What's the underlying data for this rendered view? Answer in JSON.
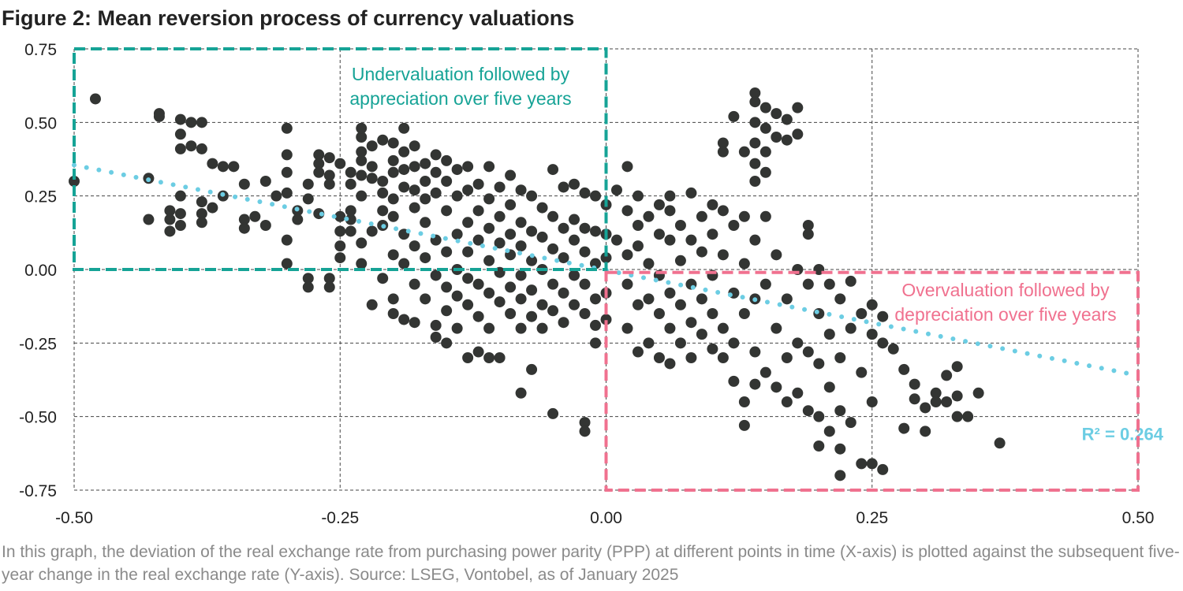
{
  "title": "Figure 2: Mean reversion process of currency valuations",
  "caption": "In this graph, the deviation of the real exchange rate from purchasing power parity (PPP) at different points in time (X-axis) is plotted against the subsequent five-year change in the real exchange rate (Y-axis). Source: LSEG, Vontobel, as of January 2025",
  "chart_data": {
    "type": "scatter",
    "title": "Figure 2: Mean reversion process of currency valuations",
    "xlabel": "",
    "ylabel": "",
    "xlim": [
      -0.5,
      0.5
    ],
    "ylim": [
      -0.75,
      0.75
    ],
    "xticks": [
      "-0.50",
      "-0.25",
      "0.00",
      "0.25",
      "0.50"
    ],
    "yticks": [
      "0.75",
      "0.50",
      "0.25",
      "0.00",
      "-0.25",
      "-0.50",
      "-0.75"
    ],
    "xtick_values": [
      -0.5,
      -0.25,
      0,
      0.25,
      0.5
    ],
    "ytick_values": [
      0.75,
      0.5,
      0.25,
      0,
      -0.25,
      -0.5,
      -0.75
    ],
    "grid": true,
    "point_color": "#333533",
    "trendline": {
      "type": "linear",
      "start": [
        -0.5,
        0.355
      ],
      "end": [
        0.5,
        -0.36
      ],
      "color": "#6ccde3",
      "label": "R² = 0.264"
    },
    "annotations": [
      {
        "text": [
          "Undervaluation followed by",
          "appreciation over five years"
        ],
        "color": "#16a396",
        "box": {
          "x": [
            -0.5,
            0
          ],
          "y": [
            0,
            0.75
          ]
        }
      },
      {
        "text": [
          "Overvaluation followed by",
          "depreciation over five years"
        ],
        "color": "#f0718f",
        "box": {
          "x": [
            0,
            0.5
          ],
          "y": [
            -0.75,
            -0.01
          ]
        }
      }
    ],
    "points": [
      [
        -0.5,
        0.3
      ],
      [
        -0.48,
        0.58
      ],
      [
        -0.43,
        0.31
      ],
      [
        -0.43,
        0.17
      ],
      [
        -0.42,
        0.53
      ],
      [
        -0.42,
        0.52
      ],
      [
        -0.41,
        0.2
      ],
      [
        -0.41,
        0.13
      ],
      [
        -0.41,
        0.17
      ],
      [
        -0.4,
        0.51
      ],
      [
        -0.4,
        0.46
      ],
      [
        -0.4,
        0.41
      ],
      [
        -0.4,
        0.25
      ],
      [
        -0.4,
        0.19
      ],
      [
        -0.4,
        0.15
      ],
      [
        -0.39,
        0.5
      ],
      [
        -0.39,
        0.42
      ],
      [
        -0.38,
        0.5
      ],
      [
        -0.38,
        0.41
      ],
      [
        -0.38,
        0.23
      ],
      [
        -0.38,
        0.19
      ],
      [
        -0.38,
        0.16
      ],
      [
        -0.37,
        0.36
      ],
      [
        -0.37,
        0.21
      ],
      [
        -0.36,
        0.35
      ],
      [
        -0.36,
        0.25
      ],
      [
        -0.35,
        0.35
      ],
      [
        -0.34,
        0.17
      ],
      [
        -0.34,
        0.14
      ],
      [
        -0.34,
        0.29
      ],
      [
        -0.33,
        0.18
      ],
      [
        -0.32,
        0.3
      ],
      [
        -0.32,
        0.15
      ],
      [
        -0.31,
        0.25
      ],
      [
        -0.3,
        0.33
      ],
      [
        -0.3,
        0.26
      ],
      [
        -0.3,
        0.39
      ],
      [
        -0.3,
        0.48
      ],
      [
        -0.3,
        0.1
      ],
      [
        -0.3,
        0.02
      ],
      [
        -0.29,
        0.2
      ],
      [
        -0.29,
        0.17
      ],
      [
        -0.28,
        -0.03
      ],
      [
        -0.28,
        -0.06
      ],
      [
        -0.28,
        0.24
      ],
      [
        -0.28,
        0.29
      ],
      [
        -0.27,
        0.39
      ],
      [
        -0.27,
        0.36
      ],
      [
        -0.27,
        0.33
      ],
      [
        -0.27,
        0.19
      ],
      [
        -0.26,
        0.38
      ],
      [
        -0.26,
        0.32
      ],
      [
        -0.26,
        0.29
      ],
      [
        -0.26,
        -0.03
      ],
      [
        -0.26,
        -0.06
      ],
      [
        -0.25,
        0.36
      ],
      [
        -0.25,
        0.13
      ],
      [
        -0.25,
        0.18
      ],
      [
        -0.25,
        0.08
      ],
      [
        -0.25,
        0.04
      ],
      [
        -0.24,
        0.17
      ],
      [
        -0.24,
        0.13
      ],
      [
        -0.24,
        0.29
      ],
      [
        -0.24,
        0.33
      ],
      [
        -0.24,
        0.2
      ],
      [
        -0.23,
        0.45
      ],
      [
        -0.23,
        0.48
      ],
      [
        -0.23,
        0.4
      ],
      [
        -0.23,
        0.37
      ],
      [
        -0.23,
        0.32
      ],
      [
        -0.23,
        0.25
      ],
      [
        -0.23,
        0.09
      ],
      [
        -0.23,
        0.02
      ],
      [
        -0.22,
        -0.12
      ],
      [
        -0.22,
        0.35
      ],
      [
        -0.22,
        0.31
      ],
      [
        -0.22,
        0.42
      ],
      [
        -0.22,
        0.13
      ],
      [
        -0.21,
        0.44
      ],
      [
        -0.21,
        0.3
      ],
      [
        -0.21,
        0.26
      ],
      [
        -0.21,
        0.2
      ],
      [
        -0.21,
        0.15
      ],
      [
        -0.21,
        -0.03
      ],
      [
        -0.2,
        0.43
      ],
      [
        -0.2,
        0.37
      ],
      [
        -0.2,
        0.33
      ],
      [
        -0.2,
        0.24
      ],
      [
        -0.2,
        0.18
      ],
      [
        -0.2,
        0.05
      ],
      [
        -0.2,
        -0.1
      ],
      [
        -0.2,
        -0.15
      ],
      [
        -0.19,
        0.48
      ],
      [
        -0.19,
        0.4
      ],
      [
        -0.19,
        0.34
      ],
      [
        -0.19,
        0.28
      ],
      [
        -0.19,
        0.12
      ],
      [
        -0.19,
        0.02
      ],
      [
        -0.19,
        -0.17
      ],
      [
        -0.18,
        0.42
      ],
      [
        -0.18,
        0.35
      ],
      [
        -0.18,
        0.27
      ],
      [
        -0.18,
        0.21
      ],
      [
        -0.18,
        0.08
      ],
      [
        -0.18,
        -0.05
      ],
      [
        -0.18,
        -0.18
      ],
      [
        -0.17,
        0.36
      ],
      [
        -0.17,
        0.3
      ],
      [
        -0.17,
        0.24
      ],
      [
        -0.17,
        0.16
      ],
      [
        -0.17,
        0.04
      ],
      [
        -0.17,
        -0.1
      ],
      [
        -0.16,
        0.39
      ],
      [
        -0.16,
        0.33
      ],
      [
        -0.16,
        0.26
      ],
      [
        -0.16,
        0.1
      ],
      [
        -0.16,
        -0.02
      ],
      [
        -0.16,
        -0.19
      ],
      [
        -0.16,
        -0.23
      ],
      [
        -0.15,
        0.37
      ],
      [
        -0.15,
        0.3
      ],
      [
        -0.15,
        0.2
      ],
      [
        -0.15,
        0.06
      ],
      [
        -0.15,
        -0.06
      ],
      [
        -0.15,
        -0.14
      ],
      [
        -0.15,
        -0.25
      ],
      [
        -0.14,
        0.34
      ],
      [
        -0.14,
        0.25
      ],
      [
        -0.14,
        0.12
      ],
      [
        -0.14,
        0.0
      ],
      [
        -0.14,
        -0.09
      ],
      [
        -0.14,
        -0.2
      ],
      [
        -0.13,
        0.35
      ],
      [
        -0.13,
        0.27
      ],
      [
        -0.13,
        0.16
      ],
      [
        -0.13,
        0.06
      ],
      [
        -0.13,
        -0.03
      ],
      [
        -0.13,
        -0.12
      ],
      [
        -0.13,
        -0.3
      ],
      [
        -0.12,
        0.29
      ],
      [
        -0.12,
        0.2
      ],
      [
        -0.12,
        0.1
      ],
      [
        -0.12,
        -0.05
      ],
      [
        -0.12,
        -0.16
      ],
      [
        -0.12,
        -0.28
      ],
      [
        -0.11,
        0.35
      ],
      [
        -0.11,
        0.24
      ],
      [
        -0.11,
        0.14
      ],
      [
        -0.11,
        0.03
      ],
      [
        -0.11,
        -0.08
      ],
      [
        -0.11,
        -0.2
      ],
      [
        -0.11,
        -0.3
      ],
      [
        -0.1,
        0.28
      ],
      [
        -0.1,
        0.18
      ],
      [
        -0.1,
        0.09
      ],
      [
        -0.1,
        -0.01
      ],
      [
        -0.1,
        -0.11
      ],
      [
        -0.1,
        -0.3
      ],
      [
        -0.09,
        0.32
      ],
      [
        -0.09,
        0.22
      ],
      [
        -0.09,
        0.12
      ],
      [
        -0.09,
        0.05
      ],
      [
        -0.09,
        -0.06
      ],
      [
        -0.09,
        -0.15
      ],
      [
        -0.08,
        0.27
      ],
      [
        -0.08,
        0.16
      ],
      [
        -0.08,
        0.08
      ],
      [
        -0.08,
        -0.02
      ],
      [
        -0.08,
        -0.1
      ],
      [
        -0.08,
        -0.2
      ],
      [
        -0.08,
        -0.42
      ],
      [
        -0.07,
        0.25
      ],
      [
        -0.07,
        0.13
      ],
      [
        -0.07,
        0.03
      ],
      [
        -0.07,
        -0.07
      ],
      [
        -0.07,
        -0.16
      ],
      [
        -0.07,
        -0.34
      ],
      [
        -0.06,
        0.21
      ],
      [
        -0.06,
        0.11
      ],
      [
        -0.06,
        0.0
      ],
      [
        -0.06,
        -0.12
      ],
      [
        -0.06,
        -0.2
      ],
      [
        -0.05,
        0.34
      ],
      [
        -0.05,
        0.18
      ],
      [
        -0.05,
        0.07
      ],
      [
        -0.05,
        -0.05
      ],
      [
        -0.05,
        -0.14
      ],
      [
        -0.05,
        -0.49
      ],
      [
        -0.04,
        0.28
      ],
      [
        -0.04,
        0.14
      ],
      [
        -0.04,
        0.04
      ],
      [
        -0.04,
        -0.08
      ],
      [
        -0.04,
        -0.18
      ],
      [
        -0.03,
        0.29
      ],
      [
        -0.03,
        0.17
      ],
      [
        -0.03,
        0.1
      ],
      [
        -0.03,
        -0.02
      ],
      [
        -0.03,
        -0.12
      ],
      [
        -0.02,
        0.26
      ],
      [
        -0.02,
        0.14
      ],
      [
        -0.02,
        0.06
      ],
      [
        -0.02,
        -0.05
      ],
      [
        -0.02,
        -0.15
      ],
      [
        -0.02,
        -0.52
      ],
      [
        -0.02,
        -0.55
      ],
      [
        -0.01,
        0.25
      ],
      [
        -0.01,
        0.13
      ],
      [
        -0.01,
        0.02
      ],
      [
        -0.01,
        -0.1
      ],
      [
        -0.01,
        -0.19
      ],
      [
        -0.01,
        -0.25
      ],
      [
        0.0,
        0.22
      ],
      [
        0.0,
        0.12
      ],
      [
        0.0,
        0.04
      ],
      [
        0.0,
        -0.08
      ],
      [
        0.0,
        -0.17
      ],
      [
        0.01,
        0.27
      ],
      [
        0.01,
        0.1
      ],
      [
        0.02,
        0.35
      ],
      [
        0.02,
        0.2
      ],
      [
        0.02,
        0.05
      ],
      [
        0.02,
        -0.05
      ],
      [
        0.02,
        -0.2
      ],
      [
        0.03,
        0.25
      ],
      [
        0.03,
        0.15
      ],
      [
        0.03,
        0.08
      ],
      [
        0.03,
        -0.12
      ],
      [
        0.03,
        -0.28
      ],
      [
        0.04,
        0.18
      ],
      [
        0.04,
        0.02
      ],
      [
        0.04,
        -0.1
      ],
      [
        0.04,
        -0.25
      ],
      [
        0.05,
        0.22
      ],
      [
        0.05,
        0.12
      ],
      [
        0.05,
        -0.02
      ],
      [
        0.05,
        -0.15
      ],
      [
        0.05,
        -0.3
      ],
      [
        0.06,
        0.25
      ],
      [
        0.06,
        0.2
      ],
      [
        0.06,
        0.1
      ],
      [
        0.06,
        -0.08
      ],
      [
        0.06,
        -0.2
      ],
      [
        0.06,
        -0.32
      ],
      [
        0.07,
        0.15
      ],
      [
        0.07,
        0.03
      ],
      [
        0.07,
        -0.12
      ],
      [
        0.07,
        -0.25
      ],
      [
        0.08,
        0.26
      ],
      [
        0.08,
        0.1
      ],
      [
        0.08,
        -0.05
      ],
      [
        0.08,
        -0.18
      ],
      [
        0.08,
        -0.3
      ],
      [
        0.09,
        0.18
      ],
      [
        0.09,
        0.06
      ],
      [
        0.09,
        -0.1
      ],
      [
        0.09,
        -0.22
      ],
      [
        0.1,
        0.22
      ],
      [
        0.1,
        0.12
      ],
      [
        0.1,
        -0.02
      ],
      [
        0.1,
        -0.15
      ],
      [
        0.1,
        -0.27
      ],
      [
        0.11,
        0.43
      ],
      [
        0.11,
        0.4
      ],
      [
        0.11,
        0.2
      ],
      [
        0.11,
        0.05
      ],
      [
        0.11,
        -0.2
      ],
      [
        0.11,
        -0.3
      ],
      [
        0.12,
        0.15
      ],
      [
        0.12,
        -0.08
      ],
      [
        0.12,
        -0.25
      ],
      [
        0.12,
        -0.38
      ],
      [
        0.12,
        0.52
      ],
      [
        0.13,
        0.4
      ],
      [
        0.13,
        0.18
      ],
      [
        0.13,
        0.02
      ],
      [
        0.13,
        -0.15
      ],
      [
        0.13,
        -0.45
      ],
      [
        0.13,
        -0.53
      ],
      [
        0.14,
        0.6
      ],
      [
        0.14,
        0.57
      ],
      [
        0.14,
        0.5
      ],
      [
        0.14,
        0.43
      ],
      [
        0.14,
        0.36
      ],
      [
        0.14,
        0.3
      ],
      [
        0.14,
        0.1
      ],
      [
        0.14,
        -0.1
      ],
      [
        0.14,
        -0.28
      ],
      [
        0.14,
        -0.39
      ],
      [
        0.15,
        0.55
      ],
      [
        0.15,
        0.48
      ],
      [
        0.15,
        0.4
      ],
      [
        0.15,
        0.33
      ],
      [
        0.15,
        0.18
      ],
      [
        0.15,
        -0.05
      ],
      [
        0.15,
        -0.35
      ],
      [
        0.16,
        0.53
      ],
      [
        0.16,
        0.45
      ],
      [
        0.16,
        0.05
      ],
      [
        0.16,
        -0.2
      ],
      [
        0.16,
        -0.4
      ],
      [
        0.17,
        0.51
      ],
      [
        0.17,
        0.44
      ],
      [
        0.17,
        -0.1
      ],
      [
        0.17,
        -0.3
      ],
      [
        0.17,
        -0.45
      ],
      [
        0.18,
        0.55
      ],
      [
        0.18,
        0.46
      ],
      [
        0.18,
        0.0
      ],
      [
        0.18,
        -0.25
      ],
      [
        0.18,
        -0.42
      ],
      [
        0.19,
        0.15
      ],
      [
        0.19,
        0.12
      ],
      [
        0.19,
        -0.05
      ],
      [
        0.19,
        -0.28
      ],
      [
        0.19,
        -0.48
      ],
      [
        0.2,
        0.0
      ],
      [
        0.2,
        -0.15
      ],
      [
        0.2,
        -0.32
      ],
      [
        0.2,
        -0.5
      ],
      [
        0.2,
        -0.6
      ],
      [
        0.21,
        -0.05
      ],
      [
        0.21,
        -0.22
      ],
      [
        0.21,
        -0.4
      ],
      [
        0.21,
        -0.55
      ],
      [
        0.22,
        -0.1
      ],
      [
        0.22,
        -0.3
      ],
      [
        0.22,
        -0.48
      ],
      [
        0.22,
        -0.61
      ],
      [
        0.22,
        -0.7
      ],
      [
        0.23,
        -0.04
      ],
      [
        0.23,
        -0.2
      ],
      [
        0.23,
        -0.52
      ],
      [
        0.24,
        -0.15
      ],
      [
        0.24,
        -0.35
      ],
      [
        0.24,
        -0.66
      ],
      [
        0.25,
        -0.12
      ],
      [
        0.25,
        -0.22
      ],
      [
        0.25,
        -0.45
      ],
      [
        0.25,
        -0.66
      ],
      [
        0.26,
        -0.16
      ],
      [
        0.26,
        -0.25
      ],
      [
        0.26,
        -0.68
      ],
      [
        0.27,
        -0.27
      ],
      [
        0.28,
        -0.34
      ],
      [
        0.28,
        -0.54
      ],
      [
        0.29,
        -0.39
      ],
      [
        0.29,
        -0.44
      ],
      [
        0.3,
        -0.47
      ],
      [
        0.3,
        -0.55
      ],
      [
        0.31,
        -0.42
      ],
      [
        0.31,
        -0.45
      ],
      [
        0.32,
        -0.36
      ],
      [
        0.32,
        -0.45
      ],
      [
        0.33,
        -0.33
      ],
      [
        0.33,
        -0.43
      ],
      [
        0.33,
        -0.5
      ],
      [
        0.34,
        -0.5
      ],
      [
        0.35,
        -0.42
      ],
      [
        0.37,
        -0.59
      ]
    ]
  }
}
